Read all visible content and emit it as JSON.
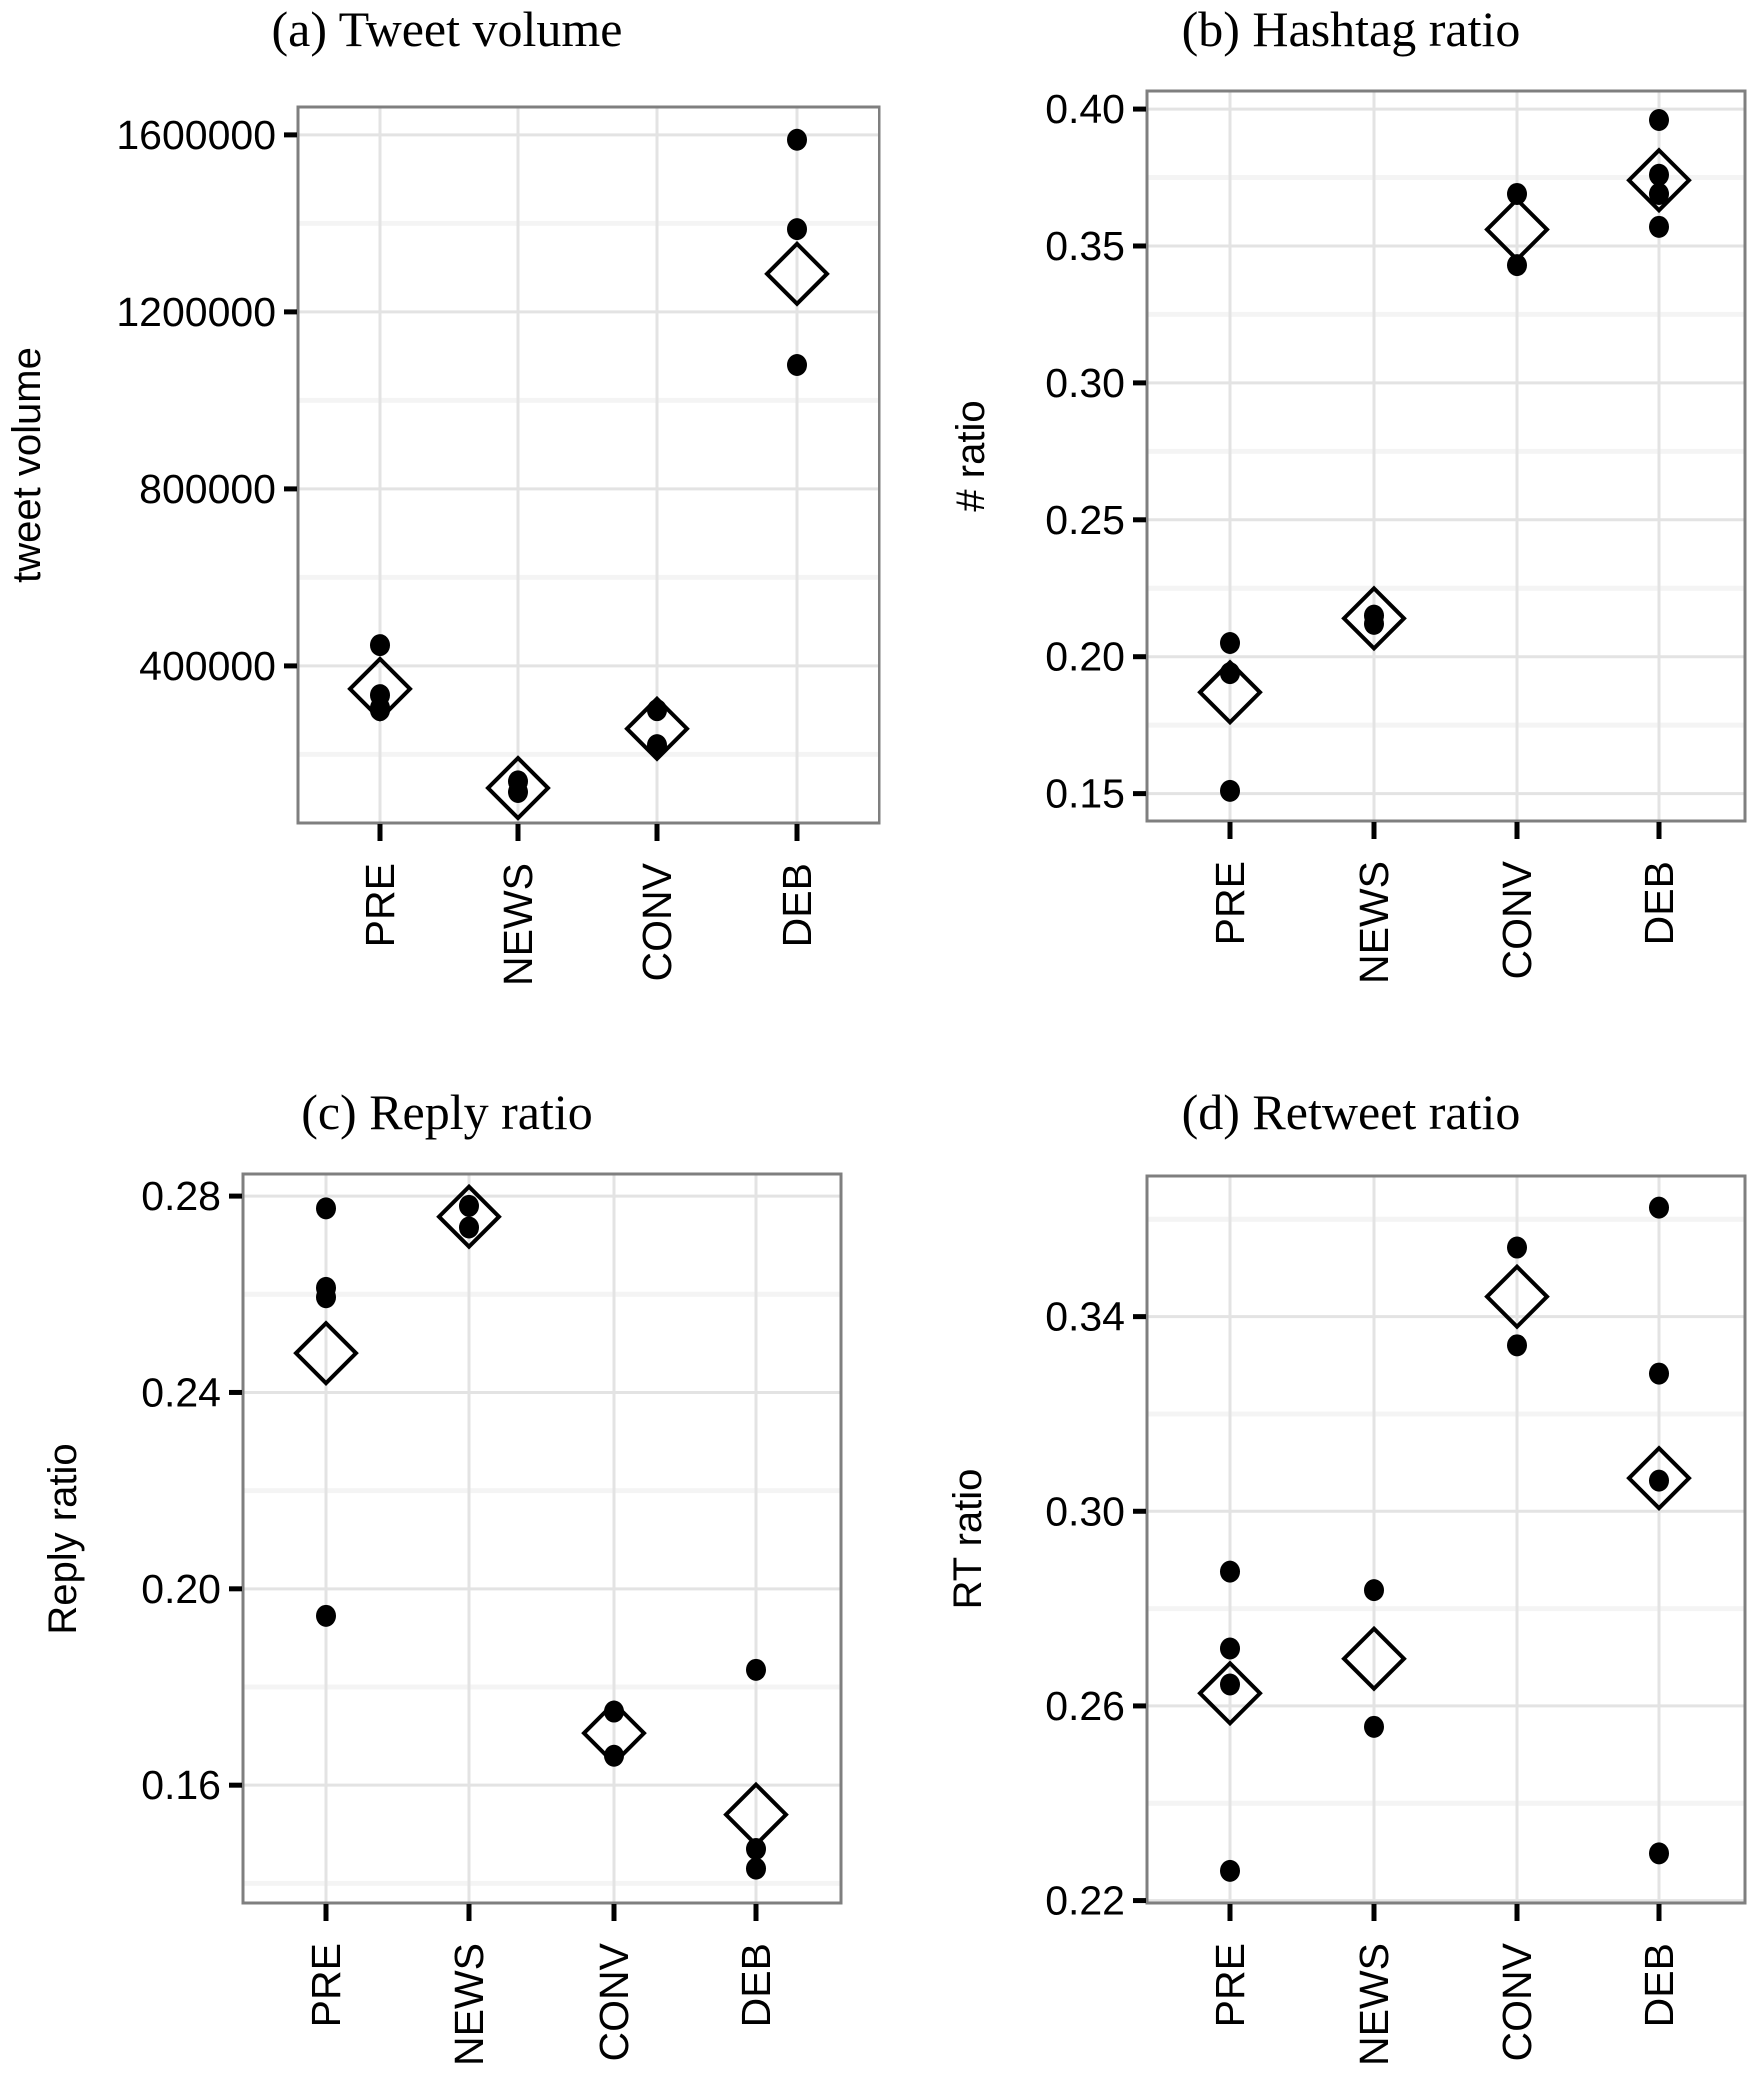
{
  "chart_data": [
    {
      "type": "scatter",
      "title": "(a) Tweet volume",
      "xlabel": "",
      "ylabel": "tweet volume",
      "categories": [
        "PRE",
        "NEWS",
        "CONV",
        "DEB"
      ],
      "ylim": [
        45000,
        1663000
      ],
      "yticks": [
        400000,
        800000,
        1200000,
        1600000
      ],
      "ytick_labels": [
        "400000",
        "800000",
        "1200000",
        "1600000"
      ],
      "grid": true,
      "points": {
        "PRE": [
          447000,
          334000,
          305000,
          300000
        ],
        "NEWS": [
          139000,
          115000
        ],
        "CONV": [
          300000,
          221000
        ],
        "DEB": [
          1589000,
          1387000,
          1080000
        ]
      },
      "means": {
        "PRE": 348000,
        "NEWS": 124000,
        "CONV": 258000,
        "DEB": 1286000
      }
    },
    {
      "type": "scatter",
      "title": "(b) Hashtag ratio",
      "xlabel": "",
      "ylabel": "# ratio",
      "categories": [
        "PRE",
        "NEWS",
        "CONV",
        "DEB"
      ],
      "ylim": [
        0.14,
        0.4066
      ],
      "yticks": [
        0.15,
        0.2,
        0.25,
        0.3,
        0.35,
        0.4
      ],
      "ytick_labels": [
        "0.15",
        "0.20",
        "0.25",
        "0.30",
        "0.35",
        "0.40"
      ],
      "grid": true,
      "points": {
        "PRE": [
          0.205,
          0.194,
          0.151
        ],
        "NEWS": [
          0.215,
          0.212
        ],
        "CONV": [
          0.369,
          0.343
        ],
        "DEB": [
          0.396,
          0.376,
          0.369,
          0.357
        ]
      },
      "means": {
        "PRE": 0.187,
        "NEWS": 0.214,
        "CONV": 0.356,
        "DEB": 0.374
      }
    },
    {
      "type": "scatter",
      "title": "(c) Reply ratio",
      "xlabel": "",
      "ylabel": "Reply ratio",
      "categories": [
        "PRE",
        "NEWS",
        "CONV",
        "DEB"
      ],
      "ylim": [
        0.136,
        0.2845
      ],
      "yticks": [
        0.16,
        0.2,
        0.24,
        0.28
      ],
      "ytick_labels": [
        "0.16",
        "0.20",
        "0.24",
        "0.28"
      ],
      "grid": true,
      "points": {
        "PRE": [
          0.2775,
          0.2613,
          0.2594,
          0.1945
        ],
        "NEWS": [
          0.278,
          0.2736
        ],
        "CONV": [
          0.175,
          0.166
        ],
        "DEB": [
          0.1835,
          0.147,
          0.143
        ]
      },
      "means": {
        "PRE": 0.248,
        "NEWS": 0.2758,
        "CONV": 0.1706,
        "DEB": 0.154
      }
    },
    {
      "type": "scatter",
      "title": "(d) Retweet ratio",
      "xlabel": "",
      "ylabel": "RT ratio",
      "categories": [
        "PRE",
        "NEWS",
        "CONV",
        "DEB"
      ],
      "ylim": [
        0.2195,
        0.3689
      ],
      "yticks": [
        0.22,
        0.26,
        0.3,
        0.34
      ],
      "ytick_labels": [
        "0.22",
        "0.26",
        "0.30",
        "0.34"
      ],
      "grid": true,
      "points": {
        "PRE": [
          0.2876,
          0.2718,
          0.2644,
          0.2261
        ],
        "NEWS": [
          0.2838,
          0.2557
        ],
        "CONV": [
          0.3542,
          0.3341
        ],
        "DEB": [
          0.3624,
          0.3283,
          0.3063,
          0.2297
        ]
      },
      "means": {
        "PRE": 0.2626,
        "NEWS": 0.2697,
        "CONV": 0.3441,
        "DEB": 0.3068
      }
    }
  ],
  "colors": {
    "point": "#000000",
    "frame": "#7f7f7f",
    "grid_major": "#e3e3e3",
    "grid_minor": "#f4f4f4"
  }
}
